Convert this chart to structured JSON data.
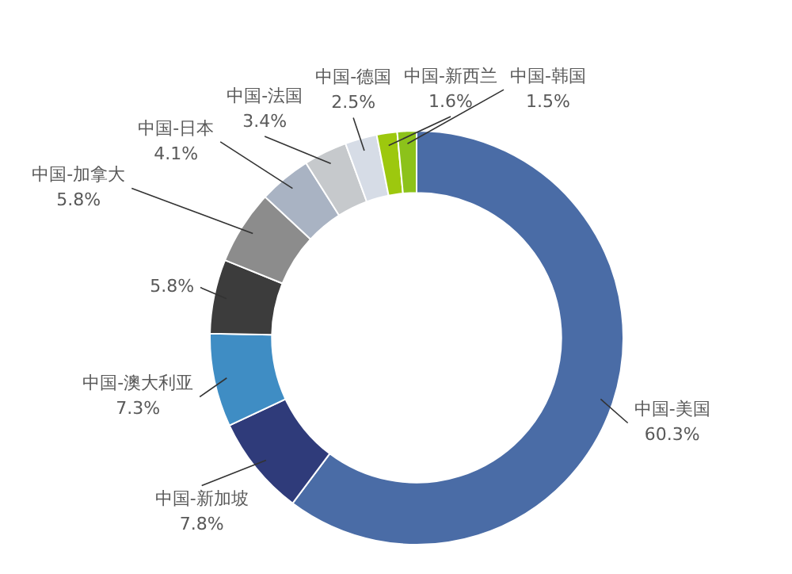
{
  "chart_data": {
    "type": "donut",
    "categories": [
      "中国-美国",
      "中国-新加坡",
      "中国-澳大利亚",
      null,
      "中国-加拿大",
      "中国-日本",
      "中国-法国",
      "中国-德国",
      "中国-新西兰",
      "中国-韩国"
    ],
    "values": [
      60.3,
      7.8,
      7.3,
      5.8,
      5.8,
      4.1,
      3.4,
      2.5,
      1.6,
      1.5
    ],
    "value_labels": [
      "60.3%",
      "7.8%",
      "7.3%",
      "5.8%",
      "5.8%",
      "4.1%",
      "3.4%",
      "2.5%",
      "1.6%",
      "1.5%"
    ],
    "colors": [
      "#4a6ca6",
      "#2f3b7a",
      "#3f8dc4",
      "#3c3c3c",
      "#8c8c8c",
      "#a9b3c3",
      "#c6c9cc",
      "#d6dce6",
      "#9dc80e",
      "#8cc21a"
    ]
  }
}
